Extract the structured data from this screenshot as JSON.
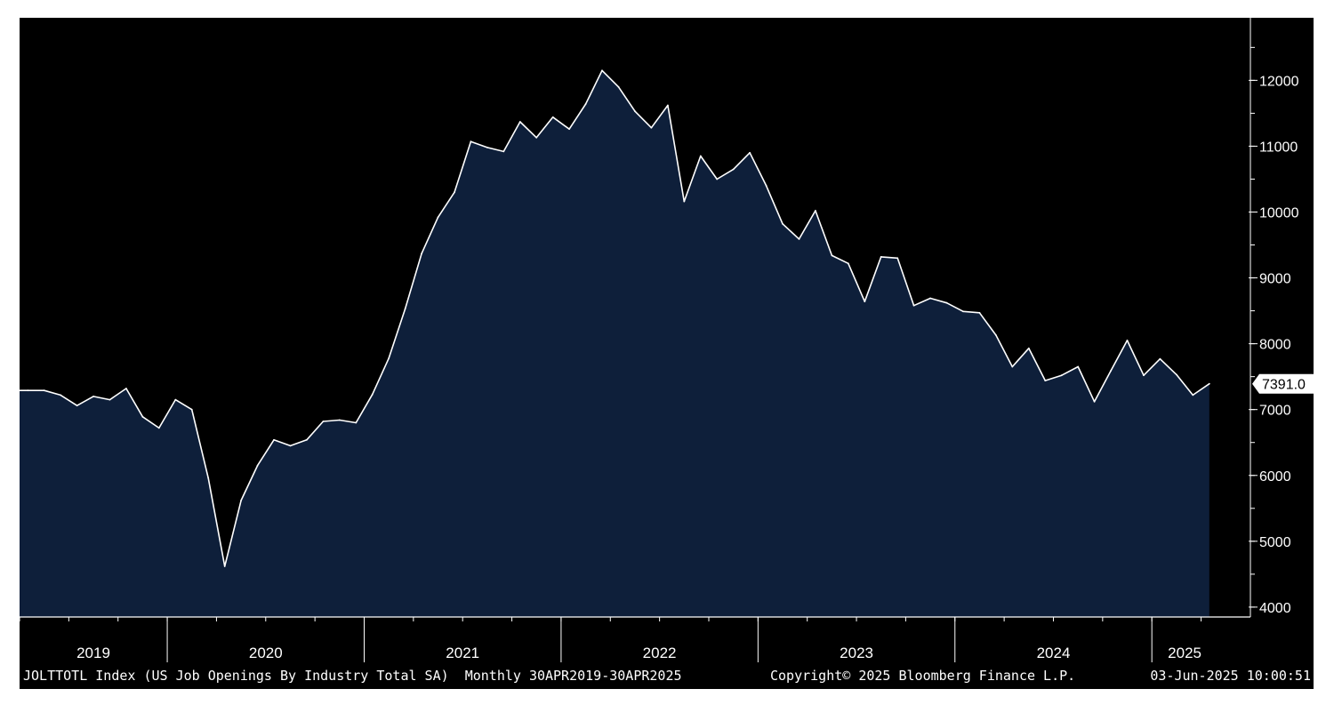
{
  "colors": {
    "background": "#000000",
    "area_fill": "#0e1f3a",
    "line": "#ffffff",
    "axis": "#ffffff",
    "last_value_box": "#ffffff",
    "last_value_text": "#000000"
  },
  "footer": {
    "ticker_description": "JOLTTOTL Index (US Job Openings By Industry Total SA)  Monthly 30APR2019-30APR2025",
    "copyright": "Copyright© 2025 Bloomberg Finance L.P.",
    "timestamp": "03-Jun-2025 10:00:51"
  },
  "last_value_label": "7391.0",
  "chart_data": {
    "type": "area",
    "series": [
      {
        "start": "2019-04",
        "frequency": "monthly",
        "values": [
          7290,
          7290,
          7220,
          7060,
          7200,
          7150,
          7320,
          6890,
          6720,
          7150,
          7000,
          5960,
          4620,
          5620,
          6150,
          6540,
          6450,
          6540,
          6820,
          6840,
          6800,
          7230,
          7780,
          8530,
          9370,
          9920,
          10300,
          11070,
          10980,
          10920,
          11370,
          11130,
          11440,
          11260,
          11640,
          12150,
          11900,
          11530,
          11280,
          11620,
          10160,
          10850,
          10500,
          10650,
          10900,
          10400,
          9820,
          9590,
          10020,
          9340,
          9220,
          8640,
          9320,
          9300,
          8580,
          8690,
          8620,
          8490,
          8470,
          8130,
          7650,
          7930,
          7440,
          7520,
          7650,
          7120,
          7590,
          8050,
          7520,
          7770,
          7530,
          7220,
          7391
        ]
      }
    ],
    "x_ticks": [
      "2019",
      "2020",
      "2021",
      "2022",
      "2023",
      "2024",
      "2025"
    ],
    "y_ticks": [
      4000,
      5000,
      6000,
      7000,
      8000,
      9000,
      10000,
      11000,
      12000
    ],
    "ylim": [
      3850,
      12950
    ],
    "legend": "none",
    "grid": false,
    "y_axis_position": "right"
  }
}
